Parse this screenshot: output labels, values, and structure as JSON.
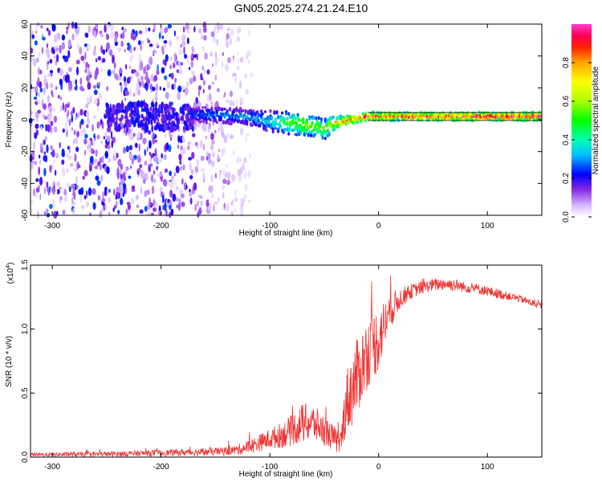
{
  "title": "GN05.2025.274.21.24.E10",
  "chart_data": [
    {
      "type": "heatmap",
      "description_of_content": "spectrogram",
      "xlabel": "Height of straight line (km)",
      "ylabel": "Frequency (Hz)",
      "xlim": [
        -320,
        150
      ],
      "ylim": [
        -60,
        60
      ],
      "x_ticks": [
        -300,
        -200,
        -100,
        0,
        100
      ],
      "y_ticks": [
        -60,
        -40,
        -20,
        0,
        20,
        40,
        60
      ],
      "colorbar": {
        "label": "Normalized spectral amplitude",
        "range": [
          0.0,
          1.0
        ],
        "ticks": [
          0.0,
          0.2,
          0.4,
          0.6,
          0.8
        ],
        "tick_labels": [
          "0.0",
          "0.2",
          "0.4",
          "0.6",
          "0.8"
        ]
      },
      "noise_region_x": [
        -320,
        -130
      ],
      "trace": {
        "x": [
          -175,
          -150,
          -125,
          -100,
          -80,
          -60,
          -50,
          -40,
          -25,
          -10,
          0,
          25,
          50,
          75,
          100,
          150
        ],
        "freq": [
          3,
          3,
          2,
          -1,
          -2,
          -4,
          -6,
          -2,
          0,
          2,
          2,
          2,
          2,
          2,
          2,
          2
        ],
        "width": [
          6,
          6,
          6,
          8,
          9,
          8,
          8,
          5,
          3,
          3,
          3,
          3,
          3,
          3,
          3,
          3
        ],
        "amplitude": [
          0.25,
          0.3,
          0.3,
          0.35,
          0.55,
          0.6,
          0.55,
          0.75,
          0.85,
          0.9,
          0.9,
          0.9,
          0.92,
          0.95,
          0.95,
          0.95
        ]
      }
    },
    {
      "type": "line",
      "xlabel": "Height of straight line (km)",
      "ylabel": "SNR (10 * v/v)",
      "scale_label": "(x10",
      "scale_exponent": "4",
      "scale_close": ")",
      "xlim": [
        -320,
        150
      ],
      "ylim": [
        0.0,
        1.5
      ],
      "x_ticks": [
        -300,
        -200,
        -100,
        0,
        100
      ],
      "y_ticks": [
        0.0,
        0.5,
        1.0,
        1.5
      ],
      "y_tick_labels": [
        "0.0",
        "0.5",
        "1.0",
        "1.5"
      ],
      "color": "#ee3333",
      "series": [
        {
          "name": "SNR",
          "x": [
            -320,
            -250,
            -200,
            -150,
            -130,
            -115,
            -100,
            -90,
            -80,
            -70,
            -60,
            -50,
            -40,
            -35,
            -30,
            -25,
            -20,
            -10,
            0,
            5,
            10,
            20,
            30,
            40,
            50,
            60,
            70,
            80,
            90,
            100,
            110,
            120,
            130,
            140,
            150
          ],
          "y": [
            0.02,
            0.025,
            0.035,
            0.045,
            0.06,
            0.1,
            0.15,
            0.18,
            0.22,
            0.28,
            0.28,
            0.22,
            0.15,
            0.1,
            0.45,
            0.55,
            0.65,
            0.85,
            0.95,
            1.05,
            1.15,
            1.25,
            1.3,
            1.33,
            1.35,
            1.36,
            1.35,
            1.33,
            1.32,
            1.3,
            1.28,
            1.26,
            1.24,
            1.21,
            1.18
          ],
          "noise_amplitude": [
            0.015,
            0.02,
            0.025,
            0.03,
            0.04,
            0.06,
            0.08,
            0.1,
            0.12,
            0.16,
            0.14,
            0.12,
            0.1,
            0.08,
            0.25,
            0.3,
            0.3,
            0.28,
            0.26,
            0.2,
            0.15,
            0.08,
            0.06,
            0.05,
            0.05,
            0.05,
            0.05,
            0.04,
            0.04,
            0.04,
            0.04,
            0.03,
            0.03,
            0.03,
            0.03
          ]
        }
      ]
    }
  ]
}
